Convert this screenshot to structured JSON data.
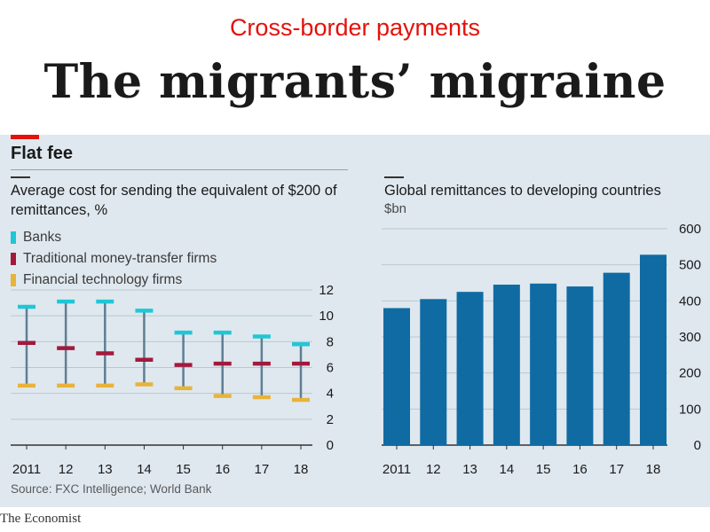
{
  "header": {
    "kicker": "Cross-border payments",
    "headline": "The migrants’ migraine"
  },
  "panel": {
    "title": "Flat fee",
    "source": "Source: FXC Intelligence; World Bank"
  },
  "footer": {
    "brand": "The Economist"
  },
  "colors": {
    "banks": "#1fc7d6",
    "traditional": "#a3193c",
    "fintech": "#e8b33a",
    "bar": "#106ba3",
    "range_line": "#5f7e93",
    "accent": "#e3120b"
  },
  "chart_data": [
    {
      "type": "scatter",
      "title": "Average cost for sending the equivalent of $200 of remittances, %",
      "categories": [
        "2011",
        "12",
        "13",
        "14",
        "15",
        "16",
        "17",
        "18"
      ],
      "ylim": [
        0,
        12
      ],
      "yticks": [
        "0",
        "2",
        "4",
        "6",
        "8",
        "10",
        "12"
      ],
      "grid": true,
      "legend_position": "top-left",
      "series": [
        {
          "name": "Banks",
          "values": [
            10.7,
            11.1,
            11.1,
            10.4,
            8.7,
            8.7,
            8.4,
            7.8
          ]
        },
        {
          "name": "Traditional money-transfer firms",
          "values": [
            7.9,
            7.5,
            7.1,
            6.6,
            6.2,
            6.3,
            6.3,
            6.3
          ]
        },
        {
          "name": "Financial technology firms",
          "values": [
            4.6,
            4.6,
            4.6,
            4.7,
            4.4,
            3.8,
            3.7,
            3.5
          ]
        }
      ]
    },
    {
      "type": "bar",
      "title": "Global remittances to developing countries",
      "ylabel": "$bn",
      "categories": [
        "2011",
        "12",
        "13",
        "14",
        "15",
        "16",
        "17",
        "18"
      ],
      "values": [
        380,
        405,
        425,
        445,
        448,
        440,
        478,
        528
      ],
      "ylim": [
        0,
        600
      ],
      "yticks": [
        "0",
        "100",
        "200",
        "300",
        "400",
        "500",
        "600"
      ],
      "grid": true
    }
  ]
}
